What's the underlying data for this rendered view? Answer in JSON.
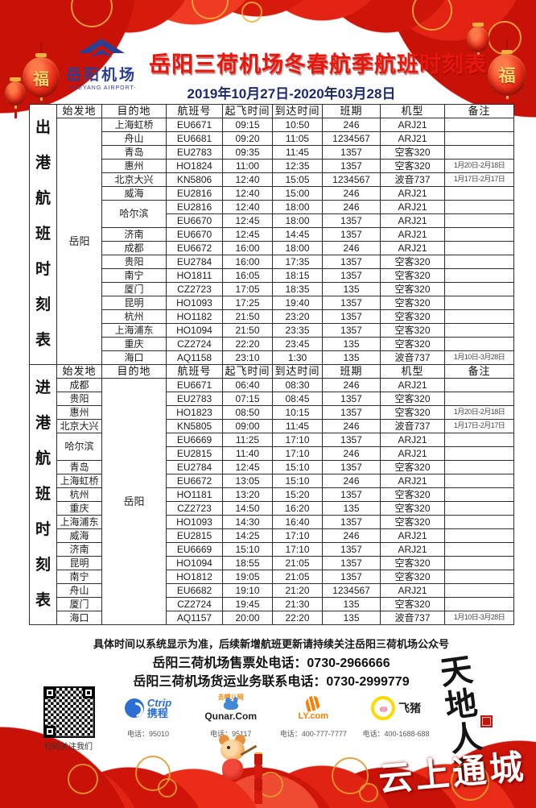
{
  "header": {
    "logo_cn": "岳阳机场",
    "logo_en": "-YUEYANG AIRPORT-",
    "title": "岳阳三荷机场冬春航季航班时刻表",
    "date_range": "2019年10月27日-2020年03月28日"
  },
  "flight_table": {
    "headers": [
      "始发地",
      "目的地",
      "航班号",
      "起飞时间",
      "到达时间",
      "班期",
      "机型",
      "备注"
    ],
    "sections": [
      {
        "side_label": "出港航班时刻表",
        "merged_side": "origin",
        "merged_city": "岳阳",
        "rows": [
          {
            "city": "上海虹桥",
            "flight": "EU6671",
            "dep": "09:15",
            "arr": "10:50",
            "days": "246",
            "type": "ARJ21",
            "note": ""
          },
          {
            "city": "舟山",
            "flight": "EU6681",
            "dep": "09:20",
            "arr": "11:05",
            "days": "1234567",
            "type": "ARJ21",
            "note": ""
          },
          {
            "city": "青岛",
            "flight": "EU2783",
            "dep": "09:35",
            "arr": "11:45",
            "days": "1357",
            "type": "空客320",
            "note": ""
          },
          {
            "city": "惠州",
            "flight": "HO1824",
            "dep": "11:00",
            "arr": "12:35",
            "days": "1357",
            "type": "空客320",
            "note": "1月20日-2月18日"
          },
          {
            "city": "北京大兴",
            "flight": "KN5806",
            "dep": "12:40",
            "arr": "15:05",
            "days": "1234567",
            "type": "波音737",
            "note": "1月17日-2月17日"
          },
          {
            "city": "威海",
            "flight": "EU2816",
            "dep": "12:40",
            "arr": "15:00",
            "days": "246",
            "type": "ARJ21",
            "note": ""
          },
          {
            "city": "哈尔滨",
            "flight": "EU2816",
            "dep": "12:40",
            "arr": "18:00",
            "days": "246",
            "type": "ARJ21",
            "note": ""
          },
          {
            "city": "哈尔滨",
            "flight": "EU6670",
            "dep": "12:45",
            "arr": "18:00",
            "days": "1357",
            "type": "ARJ21",
            "note": ""
          },
          {
            "city": "济南",
            "flight": "EU6670",
            "dep": "12:45",
            "arr": "14:45",
            "days": "1357",
            "type": "ARJ21",
            "note": ""
          },
          {
            "city": "成都",
            "flight": "EU6672",
            "dep": "16:00",
            "arr": "18:00",
            "days": "246",
            "type": "ARJ21",
            "note": ""
          },
          {
            "city": "贵阳",
            "flight": "EU2784",
            "dep": "16:00",
            "arr": "17:35",
            "days": "1357",
            "type": "空客320",
            "note": ""
          },
          {
            "city": "南宁",
            "flight": "HO1811",
            "dep": "16:05",
            "arr": "18:15",
            "days": "1357",
            "type": "空客320",
            "note": ""
          },
          {
            "city": "厦门",
            "flight": "CZ2723",
            "dep": "17:05",
            "arr": "18:35",
            "days": "135",
            "type": "空客320",
            "note": ""
          },
          {
            "city": "昆明",
            "flight": "HO1093",
            "dep": "17:25",
            "arr": "19:40",
            "days": "1357",
            "type": "空客320",
            "note": ""
          },
          {
            "city": "杭州",
            "flight": "HO1182",
            "dep": "21:50",
            "arr": "23:20",
            "days": "1357",
            "type": "空客320",
            "note": ""
          },
          {
            "city": "上海浦东",
            "flight": "HO1094",
            "dep": "21:50",
            "arr": "23:35",
            "days": "1357",
            "type": "空客320",
            "note": ""
          },
          {
            "city": "重庆",
            "flight": "CZ2724",
            "dep": "22:20",
            "arr": "23:45",
            "days": "135",
            "type": "空客320",
            "note": ""
          },
          {
            "city": "海口",
            "flight": "AQ1158",
            "dep": "23:10",
            "arr": "1:30",
            "days": "135",
            "type": "波音737",
            "note": "1月10日-3月28日"
          }
        ]
      },
      {
        "side_label": "进港航班时刻表",
        "merged_side": "dest",
        "merged_city": "岳阳",
        "rows": [
          {
            "city": "成都",
            "flight": "EU6671",
            "dep": "06:40",
            "arr": "08:30",
            "days": "246",
            "type": "ARJ21",
            "note": ""
          },
          {
            "city": "贵阳",
            "flight": "EU2783",
            "dep": "07:15",
            "arr": "08:45",
            "days": "1357",
            "type": "空客320",
            "note": ""
          },
          {
            "city": "惠州",
            "flight": "HO1823",
            "dep": "08:50",
            "arr": "10:15",
            "days": "1357",
            "type": "空客320",
            "note": "1月20日-2月18日"
          },
          {
            "city": "北京大兴",
            "flight": "KN5805",
            "dep": "09:00",
            "arr": "11:45",
            "days": "246",
            "type": "波音737",
            "note": "1月17日-2月17日"
          },
          {
            "city": "哈尔滨",
            "flight": "EU6669",
            "dep": "11:25",
            "arr": "17:10",
            "days": "1357",
            "type": "ARJ21",
            "note": ""
          },
          {
            "city": "哈尔滨",
            "flight": "EU2815",
            "dep": "11:40",
            "arr": "17:10",
            "days": "246",
            "type": "ARJ21",
            "note": ""
          },
          {
            "city": "青岛",
            "flight": "EU2784",
            "dep": "12:45",
            "arr": "15:10",
            "days": "1357",
            "type": "空客320",
            "note": ""
          },
          {
            "city": "上海虹桥",
            "flight": "EU6672",
            "dep": "13:05",
            "arr": "15:10",
            "days": "246",
            "type": "ARJ21",
            "note": ""
          },
          {
            "city": "杭州",
            "flight": "HO1181",
            "dep": "13:20",
            "arr": "15:20",
            "days": "1357",
            "type": "空客320",
            "note": ""
          },
          {
            "city": "重庆",
            "flight": "CZ2723",
            "dep": "14:50",
            "arr": "16:20",
            "days": "135",
            "type": "空客320",
            "note": ""
          },
          {
            "city": "上海浦东",
            "flight": "HO1093",
            "dep": "14:30",
            "arr": "16:40",
            "days": "1357",
            "type": "空客320",
            "note": ""
          },
          {
            "city": "威海",
            "flight": "EU2815",
            "dep": "14:25",
            "arr": "17:10",
            "days": "246",
            "type": "ARJ21",
            "note": ""
          },
          {
            "city": "济南",
            "flight": "EU6669",
            "dep": "15:10",
            "arr": "17:10",
            "days": "1357",
            "type": "ARJ21",
            "note": ""
          },
          {
            "city": "昆明",
            "flight": "HO1094",
            "dep": "18:55",
            "arr": "21:05",
            "days": "1357",
            "type": "空客320",
            "note": ""
          },
          {
            "city": "南宁",
            "flight": "HO1812",
            "dep": "19:05",
            "arr": "21:05",
            "days": "1357",
            "type": "空客320",
            "note": ""
          },
          {
            "city": "舟山",
            "flight": "EU6682",
            "dep": "19:10",
            "arr": "21:20",
            "days": "1234567",
            "type": "ARJ21",
            "note": ""
          },
          {
            "city": "厦门",
            "flight": "CZ2724",
            "dep": "19:45",
            "arr": "21:30",
            "days": "135",
            "type": "空客320",
            "note": ""
          },
          {
            "city": "海口",
            "flight": "AQ1157",
            "dep": "20:00",
            "arr": "22:20",
            "days": "135",
            "type": "波音737",
            "note": "1月10日-3月28日"
          }
        ]
      }
    ]
  },
  "footer": {
    "notice": "具体时间以系统显示为准，后续新增航班更新请持续关注岳阳三荷机场公众号",
    "ticket_hotline": "岳阳三荷机场售票处电话：0730-2966666",
    "cargo_hotline": "岳阳三荷机场货运业务联系电话：0730-2999779",
    "qr_caption": "扫码关注我们",
    "partners": [
      {
        "top": "",
        "main": "Ctrip",
        "sub": "携程",
        "phone": "电话：95010"
      },
      {
        "top": "去哪儿网",
        "main": "Qunar.Com",
        "sub": "",
        "phone": "电话：95117"
      },
      {
        "top": "",
        "main": "LY.com",
        "sub": "",
        "phone": "电话：400-777-7777"
      },
      {
        "top": "",
        "main": "飞猪",
        "sub": "",
        "phone": "电话：400-1688-688"
      }
    ]
  },
  "decor": {
    "watermark": "云上通城",
    "calligraphy": "天地人和",
    "fu": "福"
  },
  "colors": {
    "accent_red": "#e02313",
    "title_red": "#e8170e",
    "date_navy": "#1b2a6b",
    "logo_blue": "#2b3f95",
    "gold": "#f2b13e"
  }
}
